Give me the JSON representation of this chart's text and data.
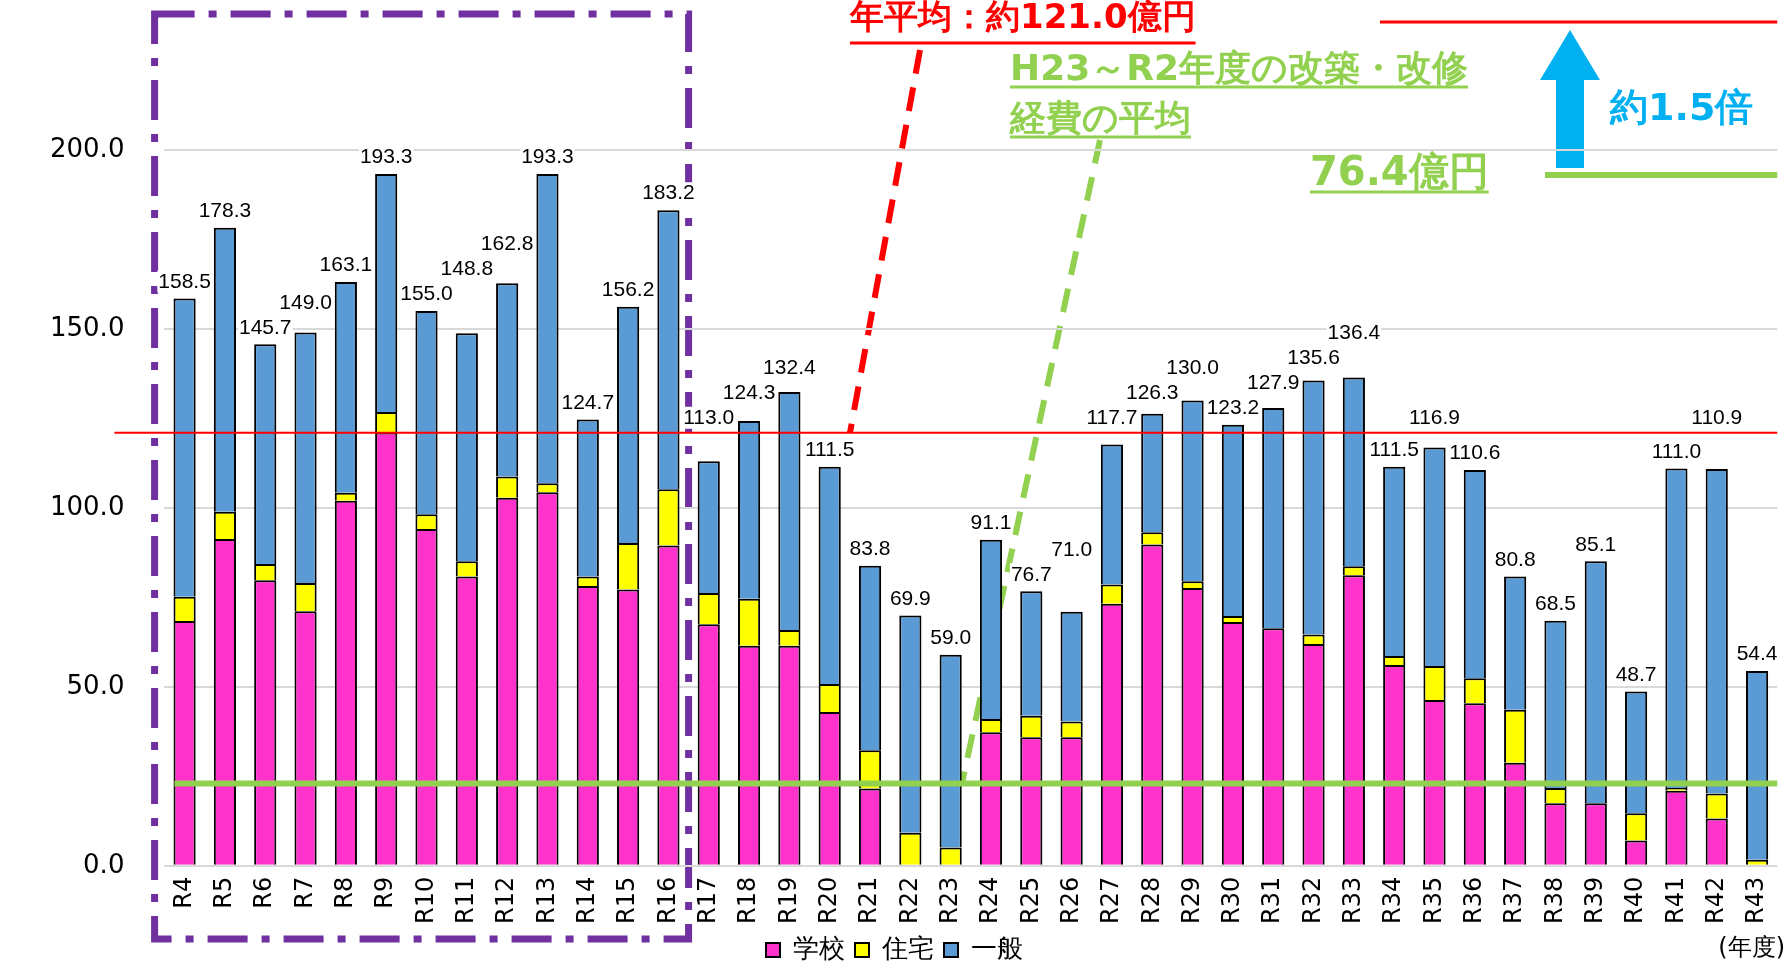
{
  "chart_data": {
    "type": "bar",
    "stacked": true,
    "xlabel": "(年度)",
    "categories": [
      "R4",
      "R5",
      "R6",
      "R7",
      "R8",
      "R9",
      "R10",
      "R11",
      "R12",
      "R13",
      "R14",
      "R15",
      "R16",
      "R17",
      "R18",
      "R19",
      "R20",
      "R21",
      "R22",
      "R23",
      "R24",
      "R25",
      "R26",
      "R27",
      "R28",
      "R29",
      "R30",
      "R31",
      "R32",
      "R33",
      "R34",
      "R35",
      "R36",
      "R37",
      "R38",
      "R39",
      "R40",
      "R41",
      "R42",
      "R43"
    ],
    "series": [
      {
        "name": "学校",
        "color": "#ff33cc",
        "values": [
          68.4,
          91.3,
          79.8,
          71.1,
          102.0,
          121.1,
          94.1,
          80.8,
          102.8,
          104.4,
          78.2,
          77.2,
          89.5,
          67.5,
          61.5,
          61.5,
          43.0,
          21.6,
          0,
          0,
          37.3,
          35.9,
          35.9,
          73.2,
          89.8,
          77.6,
          68.1,
          66.4,
          62.0,
          81.2,
          56.1,
          46.3,
          45.4,
          28.8,
          17.5,
          17.5,
          7.1,
          21.0,
          13.2,
          0
        ]
      },
      {
        "name": "住宅",
        "color": "#ffff00",
        "values": [
          6.8,
          7.6,
          4.5,
          7.9,
          2.2,
          5.7,
          4.1,
          4.3,
          6.0,
          2.5,
          2.6,
          13.0,
          15.7,
          8.7,
          13.1,
          4.4,
          7.8,
          10.7,
          9.2,
          5.1,
          3.7,
          6.0,
          4.4,
          5.4,
          3.4,
          1.9,
          1.7,
          0,
          2.6,
          2.5,
          2.5,
          9.5,
          7.0,
          14.8,
          4.2,
          0,
          7.6,
          0.7,
          7.0,
          1.7
        ]
      },
      {
        "name": "一般",
        "color": "#5b9bd5",
        "values": [
          83.3,
          79.4,
          61.4,
          70.0,
          58.9,
          66.5,
          56.8,
          63.7,
          54.0,
          86.4,
          43.9,
          66.0,
          78.0,
          36.8,
          49.7,
          66.5,
          60.7,
          51.5,
          60.7,
          53.9,
          50.1,
          34.8,
          30.7,
          39.1,
          33.1,
          50.5,
          53.4,
          61.5,
          71.0,
          52.7,
          52.9,
          61.1,
          58.2,
          37.2,
          46.8,
          67.6,
          34.0,
          89.3,
          90.7,
          52.7
        ]
      }
    ],
    "totals": [
      "158.5",
      "178.3",
      "145.7",
      "149.0",
      "163.1",
      "193.3",
      "155.0",
      "148.8",
      "162.8",
      "193.3",
      "124.7",
      "156.2",
      "183.2",
      "113.0",
      "124.3",
      "132.4",
      "111.5",
      "83.8",
      "69.9",
      "59.0",
      "91.1",
      "76.7",
      "71.0",
      "117.7",
      "126.3",
      "130.0",
      "123.2",
      "127.9",
      "135.6",
      "136.4",
      "111.5",
      "116.9",
      "110.6",
      "80.8",
      "68.5",
      "85.1",
      "48.7",
      "111.0",
      "110.9",
      "54.4"
    ],
    "ylim": [
      0,
      200
    ],
    "yticks": [
      {
        "value": 0,
        "label": "0.0"
      },
      {
        "value": 50,
        "label": "50.0"
      },
      {
        "value": 100,
        "label": "100.0"
      },
      {
        "value": 150,
        "label": "150.0"
      },
      {
        "value": 200,
        "label": "200.0"
      }
    ],
    "grid": "y",
    "legend": "bottom",
    "ref_lines": [
      {
        "axis": "y",
        "value": 121.0,
        "label": "年平均：約121.0億円",
        "color": "#ff0000"
      },
      {
        "axis": "y",
        "value": 23,
        "color": "#92d050"
      }
    ],
    "annotations": [
      "H23～R2年度の改築・改修経費の平均",
      "76.4億円",
      "約1.5倍"
    ]
  }
}
